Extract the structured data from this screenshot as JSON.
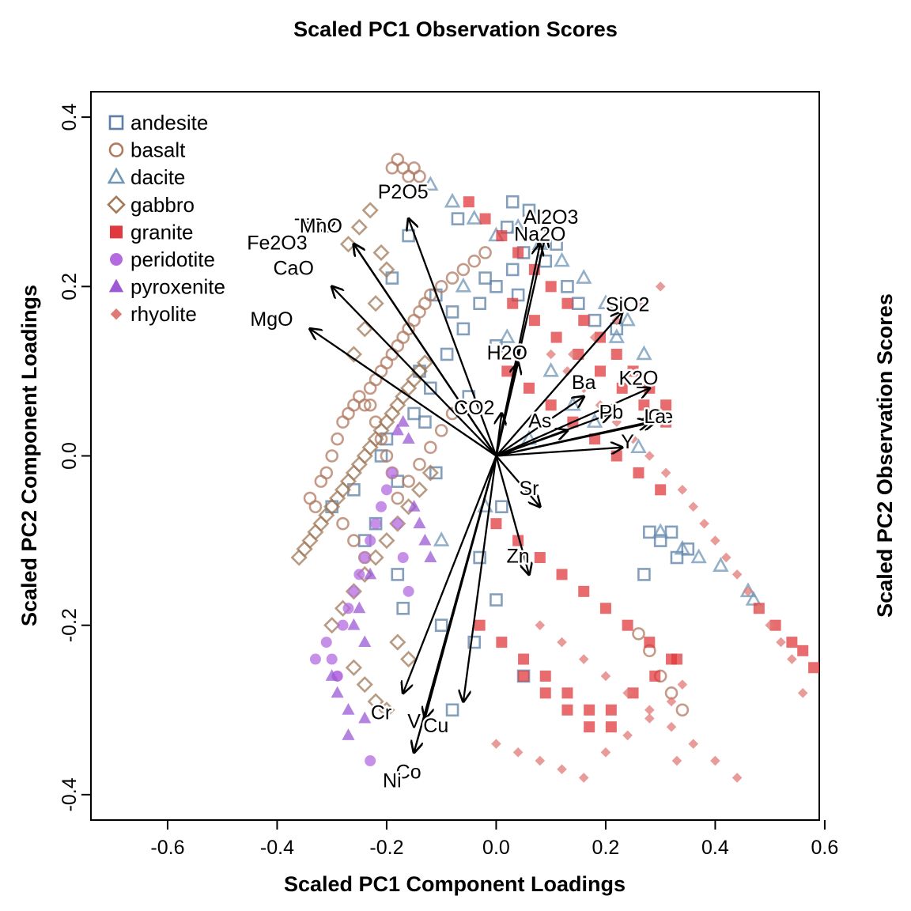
{
  "chart_data": {
    "type": "scatter",
    "title": "Scaled PC1 Observation Scores",
    "xlabel": "Scaled PC1 Component Loadings",
    "ylabel": "Scaled PC2 Component Loadings",
    "ylabel_right": "Scaled PC2 Observation Scores",
    "xlim": [
      -0.74,
      0.59
    ],
    "ylim": [
      -0.43,
      0.43
    ],
    "x_ticks": [
      "-0.6",
      "-0.4",
      "-0.2",
      "0.0",
      "0.2",
      "0.4",
      "0.6"
    ],
    "y_ticks": [
      "-0.4",
      "-0.2",
      "0.0",
      "0.2",
      "0.4"
    ],
    "legend_position": "top-left",
    "series": [
      {
        "name": "andesite",
        "marker": "square-open",
        "color": "#5b7fa6",
        "x": [
          -0.3,
          -0.26,
          -0.22,
          -0.18,
          -0.15,
          -0.12,
          -0.09,
          -0.06,
          -0.03,
          0.0,
          0.03,
          0.05,
          0.08,
          0.11,
          -0.2,
          -0.14,
          -0.08,
          -0.02,
          0.02,
          0.06,
          -0.24,
          -0.18,
          -0.11,
          -0.05,
          0.0,
          0.04,
          0.09,
          -0.17,
          -0.1,
          -0.03,
          0.01,
          -0.21,
          -0.13,
          -0.07,
          0.03,
          0.28,
          0.3,
          0.33,
          0.35,
          0.32,
          0.27,
          0.05,
          -0.08,
          -0.04,
          0.0,
          -0.11,
          -0.16,
          -0.19,
          0.13,
          0.15,
          0.18,
          0.22
        ],
        "y": [
          -0.06,
          -0.04,
          -0.08,
          -0.03,
          0.05,
          0.08,
          0.12,
          0.15,
          0.18,
          0.2,
          0.22,
          0.24,
          0.26,
          0.25,
          0.02,
          0.1,
          0.17,
          0.21,
          0.27,
          0.29,
          -0.1,
          -0.14,
          -0.02,
          0.07,
          0.13,
          0.19,
          0.23,
          -0.18,
          -0.2,
          -0.12,
          -0.06,
          0.0,
          0.04,
          0.28,
          0.3,
          -0.09,
          -0.1,
          -0.12,
          -0.11,
          -0.09,
          -0.14,
          -0.26,
          -0.3,
          -0.22,
          -0.17,
          0.19,
          0.26,
          0.21,
          0.2,
          0.18,
          0.16,
          0.15
        ]
      },
      {
        "name": "basalt",
        "marker": "circle-open",
        "color": "#b07a62",
        "x": [
          -0.34,
          -0.33,
          -0.32,
          -0.31,
          -0.3,
          -0.29,
          -0.28,
          -0.27,
          -0.26,
          -0.25,
          -0.24,
          -0.23,
          -0.22,
          -0.21,
          -0.2,
          -0.19,
          -0.18,
          -0.17,
          -0.16,
          -0.15,
          -0.14,
          -0.13,
          -0.12,
          -0.1,
          -0.08,
          -0.06,
          -0.04,
          -0.02,
          -0.19,
          -0.18,
          -0.17,
          -0.16,
          -0.15,
          -0.14,
          -0.23,
          -0.22,
          -0.21,
          -0.2,
          -0.19,
          -0.28,
          -0.26,
          -0.24,
          -0.18,
          -0.16,
          -0.14,
          -0.12,
          -0.1,
          -0.08,
          0.26,
          0.28,
          0.3,
          0.32,
          0.34
        ],
        "y": [
          -0.05,
          -0.06,
          -0.03,
          -0.02,
          0.0,
          0.02,
          0.04,
          0.05,
          0.06,
          0.07,
          0.06,
          0.08,
          0.09,
          0.1,
          0.11,
          0.12,
          0.13,
          0.14,
          0.15,
          0.16,
          0.17,
          0.18,
          0.19,
          0.2,
          0.21,
          0.22,
          0.23,
          0.24,
          0.34,
          0.35,
          0.34,
          0.33,
          0.34,
          0.33,
          0.06,
          0.04,
          0.02,
          0.0,
          -0.02,
          -0.08,
          -0.1,
          -0.12,
          -0.05,
          -0.03,
          -0.01,
          0.01,
          0.03,
          0.05,
          -0.21,
          -0.23,
          -0.26,
          -0.28,
          -0.3
        ]
      },
      {
        "name": "dacite",
        "marker": "triangle-open",
        "color": "#6f96b5",
        "x": [
          -0.12,
          -0.08,
          -0.04,
          0.0,
          0.04,
          0.08,
          0.12,
          0.16,
          0.2,
          0.24,
          -0.06,
          0.02,
          0.1,
          0.18,
          0.26,
          0.3,
          0.34,
          0.37,
          0.41,
          0.46,
          0.47,
          0.27,
          0.22,
          0.14,
          0.06,
          -0.02,
          -0.1
        ],
        "y": [
          0.32,
          0.3,
          0.28,
          0.26,
          0.27,
          0.25,
          0.23,
          0.21,
          0.18,
          0.16,
          0.2,
          0.14,
          0.1,
          0.04,
          0.01,
          -0.09,
          -0.11,
          -0.12,
          -0.13,
          -0.16,
          -0.17,
          0.12,
          0.14,
          0.06,
          0.02,
          -0.06,
          -0.1
        ]
      },
      {
        "name": "gabbro",
        "marker": "diamond-open",
        "color": "#a07a5a",
        "x": [
          -0.36,
          -0.35,
          -0.34,
          -0.33,
          -0.32,
          -0.31,
          -0.3,
          -0.29,
          -0.28,
          -0.27,
          -0.26,
          -0.25,
          -0.24,
          -0.23,
          -0.22,
          -0.21,
          -0.2,
          -0.19,
          -0.18,
          -0.17,
          -0.16,
          -0.15,
          -0.14,
          -0.13,
          -0.3,
          -0.28,
          -0.26,
          -0.24,
          -0.22,
          -0.2,
          -0.18,
          -0.16,
          -0.14,
          -0.12,
          -0.26,
          -0.24,
          -0.22,
          -0.2,
          -0.26,
          -0.24,
          -0.22,
          -0.2,
          -0.18,
          -0.16,
          -0.27,
          -0.25,
          -0.23,
          -0.21
        ],
        "y": [
          -0.12,
          -0.11,
          -0.1,
          -0.09,
          -0.08,
          -0.07,
          -0.06,
          -0.05,
          -0.04,
          -0.03,
          -0.02,
          -0.01,
          0.0,
          0.01,
          0.02,
          0.03,
          0.04,
          0.05,
          0.06,
          0.07,
          0.08,
          0.09,
          0.1,
          0.11,
          -0.2,
          -0.18,
          -0.16,
          -0.14,
          -0.12,
          -0.1,
          -0.08,
          -0.06,
          -0.04,
          -0.02,
          0.12,
          0.15,
          0.18,
          0.22,
          -0.25,
          -0.27,
          -0.29,
          -0.3,
          -0.22,
          -0.24,
          0.25,
          0.27,
          0.29,
          0.24
        ]
      },
      {
        "name": "granite",
        "marker": "square-filled",
        "color": "#e0393e",
        "x": [
          -0.05,
          -0.02,
          0.01,
          0.04,
          0.07,
          0.1,
          0.13,
          0.16,
          0.19,
          0.22,
          0.25,
          0.28,
          0.31,
          0.02,
          0.06,
          0.1,
          0.14,
          0.18,
          0.22,
          0.26,
          0.3,
          0.0,
          0.04,
          0.08,
          0.12,
          0.16,
          0.2,
          0.24,
          0.28,
          0.32,
          0.05,
          0.09,
          0.13,
          0.17,
          0.21,
          0.25,
          0.29,
          0.33,
          0.48,
          0.51,
          0.54,
          0.56,
          0.58,
          0.03,
          0.07,
          0.11,
          0.15,
          0.19,
          0.23,
          0.27,
          0.31,
          -0.03,
          0.01,
          0.05,
          0.09,
          0.13,
          0.17,
          0.21
        ],
        "y": [
          0.3,
          0.28,
          0.26,
          0.24,
          0.22,
          0.2,
          0.18,
          0.16,
          0.14,
          0.12,
          0.1,
          0.08,
          0.06,
          0.1,
          0.08,
          0.06,
          0.04,
          0.02,
          0.0,
          -0.02,
          -0.04,
          -0.08,
          -0.1,
          -0.12,
          -0.14,
          -0.16,
          -0.18,
          -0.2,
          -0.22,
          -0.24,
          -0.26,
          -0.28,
          -0.3,
          -0.32,
          -0.3,
          -0.28,
          -0.26,
          -0.24,
          -0.18,
          -0.2,
          -0.22,
          -0.23,
          -0.25,
          0.18,
          0.16,
          0.14,
          0.12,
          0.1,
          0.08,
          0.06,
          0.04,
          -0.2,
          -0.22,
          -0.24,
          -0.26,
          -0.28,
          -0.3,
          -0.32
        ]
      },
      {
        "name": "peridotite",
        "marker": "circle-filled",
        "color": "#b46be0",
        "x": [
          -0.31,
          -0.3,
          -0.29,
          -0.28,
          -0.27,
          -0.26,
          -0.25,
          -0.24,
          -0.23,
          -0.22,
          -0.21,
          -0.2,
          -0.19,
          -0.18,
          -0.17,
          -0.16,
          -0.23,
          -0.29,
          -0.33
        ],
        "y": [
          -0.22,
          -0.24,
          -0.26,
          -0.2,
          -0.18,
          -0.16,
          -0.14,
          -0.12,
          -0.1,
          -0.08,
          -0.06,
          -0.04,
          -0.02,
          -0.08,
          -0.12,
          -0.16,
          -0.36,
          -0.26,
          -0.24
        ]
      },
      {
        "name": "pyroxenite",
        "marker": "triangle-filled",
        "color": "#9b59d6",
        "x": [
          -0.3,
          -0.29,
          -0.27,
          -0.26,
          -0.25,
          -0.24,
          -0.23,
          -0.18,
          -0.17,
          -0.16,
          -0.15,
          -0.14,
          -0.13,
          -0.12,
          -0.27,
          -0.24
        ],
        "y": [
          -0.26,
          -0.28,
          -0.3,
          -0.2,
          -0.18,
          -0.22,
          -0.14,
          0.03,
          0.04,
          0.02,
          -0.06,
          -0.08,
          -0.1,
          -0.12,
          -0.33,
          -0.31
        ]
      },
      {
        "name": "rhyolite",
        "marker": "diamond-filled",
        "color": "#e07a76",
        "x": [
          0.1,
          0.13,
          0.16,
          0.19,
          0.22,
          0.25,
          0.28,
          0.31,
          0.34,
          0.36,
          0.38,
          0.4,
          0.42,
          0.44,
          0.46,
          0.48,
          0.5,
          0.52,
          0.54,
          0.56,
          0.08,
          0.12,
          0.16,
          0.2,
          0.24,
          0.28,
          0.32,
          0.36,
          0.4,
          0.44,
          0.0,
          0.04,
          0.08,
          0.12,
          0.16,
          0.2,
          0.24,
          0.28,
          0.32,
          0.34,
          0.3,
          0.26,
          0.22,
          0.18,
          0.14,
          0.33
        ],
        "y": [
          0.12,
          0.1,
          0.08,
          0.06,
          0.04,
          0.02,
          0.0,
          -0.02,
          -0.04,
          -0.06,
          -0.08,
          -0.1,
          -0.12,
          -0.14,
          -0.16,
          -0.18,
          -0.2,
          -0.22,
          -0.24,
          -0.28,
          -0.2,
          -0.22,
          -0.24,
          -0.26,
          -0.28,
          -0.3,
          -0.32,
          -0.34,
          -0.36,
          -0.38,
          -0.34,
          -0.35,
          -0.36,
          -0.37,
          -0.38,
          -0.35,
          -0.33,
          -0.31,
          -0.29,
          -0.27,
          0.2,
          0.18,
          0.16,
          0.14,
          0.12,
          -0.36
        ]
      }
    ],
    "vectors": [
      {
        "name": "P2O5",
        "x": -0.16,
        "y": 0.28,
        "lx": -0.17,
        "ly": 0.31
      },
      {
        "name": "Al2O3",
        "x": 0.09,
        "y": 0.26,
        "lx": 0.1,
        "ly": 0.28
      },
      {
        "name": "Na2O",
        "x": 0.08,
        "y": 0.25,
        "lx": 0.08,
        "ly": 0.26
      },
      {
        "name": "TiO2",
        "x": -0.26,
        "y": 0.25,
        "lx": -0.33,
        "ly": 0.27
      },
      {
        "name": "MnO",
        "x": -0.26,
        "y": 0.25,
        "lx": -0.32,
        "ly": 0.27
      },
      {
        "name": "Fe2O3",
        "x": -0.26,
        "y": 0.25,
        "lx": -0.4,
        "ly": 0.25
      },
      {
        "name": "CaO",
        "x": -0.3,
        "y": 0.2,
        "lx": -0.37,
        "ly": 0.22
      },
      {
        "name": "MgO",
        "x": -0.34,
        "y": 0.15,
        "lx": -0.41,
        "ly": 0.16
      },
      {
        "name": "SiO2",
        "x": 0.23,
        "y": 0.17,
        "lx": 0.24,
        "ly": 0.177
      },
      {
        "name": "H2O",
        "x": 0.04,
        "y": 0.11,
        "lx": 0.02,
        "ly": 0.12
      },
      {
        "name": "Ba",
        "x": 0.16,
        "y": 0.07,
        "lx": 0.16,
        "ly": 0.085
      },
      {
        "name": "K2O",
        "x": 0.28,
        "y": 0.08,
        "lx": 0.26,
        "ly": 0.09
      },
      {
        "name": "CO2",
        "x": 0.01,
        "y": 0.05,
        "lx": -0.04,
        "ly": 0.055
      },
      {
        "name": "Pb",
        "x": 0.21,
        "y": 0.05,
        "lx": 0.21,
        "ly": 0.05
      },
      {
        "name": "Ce",
        "x": 0.29,
        "y": 0.04,
        "lx": 0.3,
        "ly": 0.045
      },
      {
        "name": "La",
        "x": 0.28,
        "y": 0.04,
        "lx": 0.29,
        "ly": 0.045
      },
      {
        "name": "As",
        "x": 0.13,
        "y": 0.03,
        "lx": 0.08,
        "ly": 0.04
      },
      {
        "name": "Y",
        "x": 0.23,
        "y": 0.01,
        "lx": 0.24,
        "ly": 0.015
      },
      {
        "name": "Sr",
        "x": 0.08,
        "y": -0.06,
        "lx": 0.06,
        "ly": -0.04
      },
      {
        "name": "Zn",
        "x": 0.06,
        "y": -0.14,
        "lx": 0.04,
        "ly": -0.12
      },
      {
        "name": "Cr",
        "x": -0.17,
        "y": -0.28,
        "lx": -0.21,
        "ly": -0.305
      },
      {
        "name": "V",
        "x": -0.13,
        "y": -0.31,
        "lx": -0.15,
        "ly": -0.315
      },
      {
        "name": "Cu",
        "x": -0.06,
        "y": -0.29,
        "lx": -0.11,
        "ly": -0.32
      },
      {
        "name": "Co",
        "x": -0.15,
        "y": -0.35,
        "lx": -0.16,
        "ly": -0.375
      },
      {
        "name": "Ni",
        "x": -0.15,
        "y": -0.35,
        "lx": -0.19,
        "ly": -0.385
      }
    ]
  }
}
